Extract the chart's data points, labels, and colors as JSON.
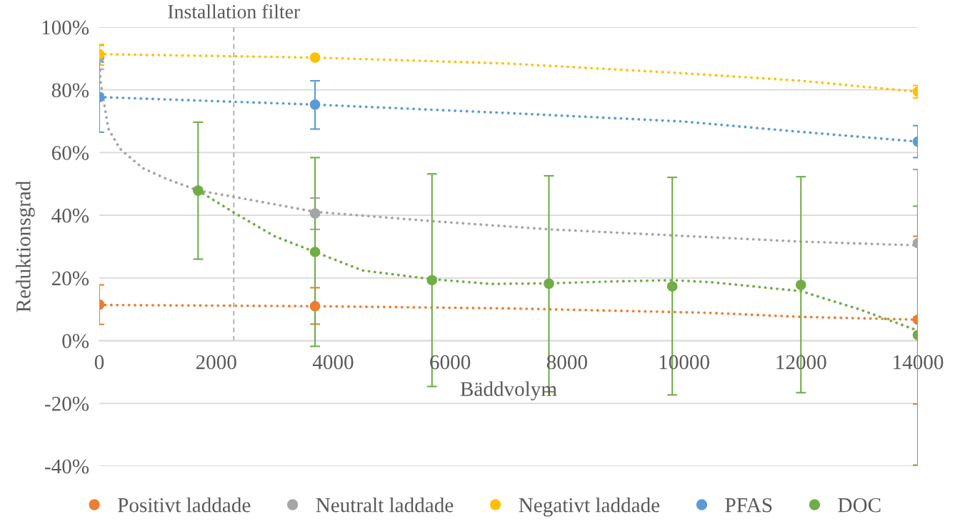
{
  "chart_data": {
    "type": "scatter",
    "xlabel": "Bäddvolym",
    "ylabel": "Reduktionsgrad",
    "xlim": [
      0,
      14000
    ],
    "xticks": [
      0,
      2000,
      4000,
      6000,
      8000,
      10000,
      12000,
      14000
    ],
    "ylim": [
      -40,
      100
    ],
    "yticks": [
      {
        "value": -40,
        "label": "-40%"
      },
      {
        "value": -20,
        "label": "-20%"
      },
      {
        "value": 0,
        "label": "0%"
      },
      {
        "value": 20,
        "label": "20%"
      },
      {
        "value": 40,
        "label": "40%"
      },
      {
        "value": 60,
        "label": "60%"
      },
      {
        "value": 80,
        "label": "80%"
      },
      {
        "value": 100,
        "label": "100%"
      }
    ],
    "grid": "y",
    "legend": "bottom",
    "line_style": "dotted",
    "ref_lines": [
      {
        "axis": "x",
        "value": 2300,
        "label": "Installation filter",
        "color": "#a5a5a5",
        "line_style": "dashed"
      }
    ],
    "series": [
      {
        "marker": "circle",
        "name": "Positivt laddade",
        "color": "#ed7d31",
        "x": [
          0,
          3690,
          14000
        ],
        "values": [
          11.5,
          11.0,
          6.7
        ],
        "errors": [
          [
            5.2,
            17.8
          ],
          [
            5.3,
            16.9
          ],
          [
            -20.2,
            33.3
          ]
        ]
      },
      {
        "marker": "circle",
        "name": "Neutralt laddade",
        "color": "#a5a5a5",
        "x": [
          0,
          3690,
          14000
        ],
        "values": [
          90.4,
          40.6,
          31.1
        ],
        "errors": [
          [
            86.6,
            94.2
          ],
          [
            35.5,
            45.5
          ],
          [
            7.6,
            54.6
          ]
        ]
      },
      {
        "marker": "circle",
        "name": "Negativt laddade",
        "color": "#ffc000",
        "x": [
          0,
          3690,
          14000
        ],
        "values": [
          91.4,
          90.3,
          79.4
        ],
        "errors": [
          [
            87.9,
            94.5
          ],
          null,
          [
            77.4,
            81.4
          ]
        ]
      },
      {
        "marker": "circle",
        "name": "PFAS",
        "color": "#5b9bd5",
        "x": [
          0,
          3690,
          14000
        ],
        "values": [
          77.7,
          75.3,
          63.5
        ],
        "errors": [
          [
            66.5,
            88.9
          ],
          [
            67.5,
            82.9
          ],
          [
            58.4,
            68.6
          ]
        ]
      },
      {
        "marker": "circle",
        "name": "DOC",
        "color": "#70ad47",
        "x": [
          1690,
          3690,
          5690,
          7690,
          9800,
          12000,
          14000
        ],
        "values": [
          47.9,
          28.3,
          19.3,
          18.2,
          17.3,
          17.8,
          1.8
        ],
        "errors": [
          [
            26.0,
            69.7
          ],
          [
            -1.8,
            58.4
          ],
          [
            -14.6,
            53.2
          ],
          [
            -16.3,
            52.6
          ],
          [
            -17.3,
            52.1
          ],
          [
            -16.6,
            52.3
          ],
          [
            -39.7,
            42.9
          ]
        ]
      },
      {
        "type": "line",
        "color": "#ed7d31",
        "x": [
          0,
          3690,
          7000,
          10400,
          12000,
          14000
        ],
        "values": [
          11.4,
          11.0,
          10.3,
          8.9,
          7.6,
          6.7
        ]
      },
      {
        "type": "line",
        "color": "#a5a5a5",
        "x": [
          0,
          20,
          155,
          354,
          745,
          1150,
          1690,
          2300,
          3690,
          5710,
          7720,
          9790,
          12000,
          14000
        ],
        "values": [
          90.0,
          82.9,
          67.6,
          61.2,
          55.0,
          51.6,
          47.9,
          45.9,
          41.1,
          38.1,
          35.5,
          33.6,
          31.6,
          30.4
        ]
      },
      {
        "type": "line",
        "color": "#ffc000",
        "x": [
          0,
          3690,
          7000,
          10000,
          12000,
          14000
        ],
        "values": [
          91.4,
          90.3,
          88.4,
          85.3,
          82.9,
          79.4
        ]
      },
      {
        "type": "line",
        "color": "#5b9bd5",
        "x": [
          0,
          3690,
          7000,
          10000,
          12000,
          14000
        ],
        "values": [
          77.7,
          75.3,
          72.6,
          69.9,
          66.6,
          63.5
        ]
      },
      {
        "type": "line",
        "color": "#70ad47",
        "x": [
          1690,
          2300,
          3000,
          3690,
          4500,
          5700,
          6700,
          7700,
          8800,
          9800,
          10500,
          12000,
          13000,
          14000
        ],
        "values": [
          47.9,
          40.9,
          33.3,
          28.3,
          22.4,
          19.6,
          18.1,
          18.3,
          18.9,
          19.3,
          18.6,
          15.8,
          10.0,
          3.2
        ]
      }
    ]
  }
}
